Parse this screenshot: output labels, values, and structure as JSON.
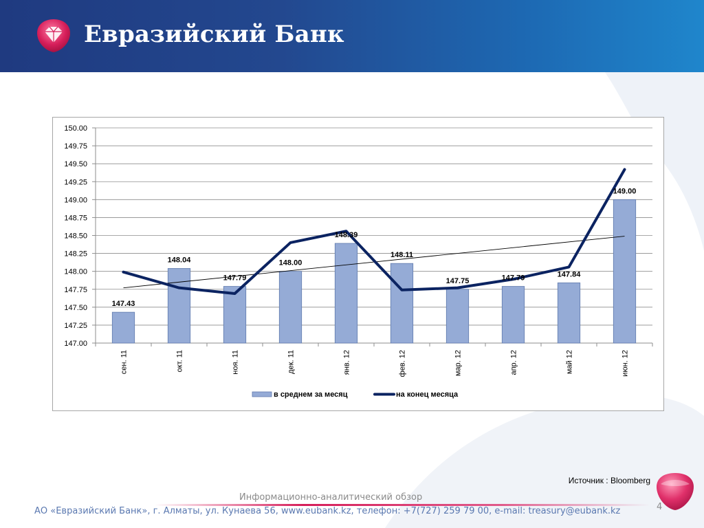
{
  "header": {
    "bank_name": "Евразийский Банк",
    "colors": {
      "bar_start": "#1f3a80",
      "bar_end": "#1f86cc",
      "gem": "#d61e5a"
    }
  },
  "chart_data": {
    "type": "bar",
    "categories": [
      "сен. 11",
      "окт. 11",
      "ноя. 11",
      "дек. 11",
      "янв. 12",
      "фев. 12",
      "мар. 12",
      "апр. 12",
      "май 12",
      "июн. 12"
    ],
    "series": [
      {
        "name": "в среднем  за месяц",
        "type": "bar",
        "color": "#95abd6",
        "values": [
          147.43,
          148.04,
          147.79,
          148.0,
          148.39,
          148.11,
          147.75,
          147.79,
          147.84,
          149.0
        ],
        "labels": [
          "147.43",
          "148.04",
          "147.79",
          "148.00",
          "148.39",
          "148.11",
          "147.75",
          "147.79",
          "147.84",
          "149.00"
        ]
      },
      {
        "name": "на конец месяца",
        "type": "line",
        "color": "#0b2361",
        "values": [
          147.99,
          147.77,
          147.69,
          148.4,
          148.56,
          147.74,
          147.77,
          147.89,
          148.06,
          149.42
        ]
      }
    ],
    "trendline": {
      "from": 147.77,
      "to": 148.49,
      "color": "#000000"
    },
    "yticks": [
      "147.00",
      "147.25",
      "147.50",
      "147.75",
      "148.00",
      "148.25",
      "148.50",
      "148.75",
      "149.00",
      "149.25",
      "149.50",
      "149.75",
      "150.00"
    ],
    "ylim": [
      147.0,
      150.0
    ],
    "ystep": 0.25,
    "grid": true,
    "legend": "bottom",
    "title": "",
    "xlabel": "",
    "ylabel": ""
  },
  "source": "Источник : Bloomberg",
  "footer": {
    "title": "Информационно-аналитический обзор",
    "contacts": "АО «Евразийский Банк», г. Алматы, ул. Кунаева 56, www.eubank.kz, телефон: +7(727) 259 79 00, e-mail: treasury@eubank.kz",
    "page": "4"
  }
}
